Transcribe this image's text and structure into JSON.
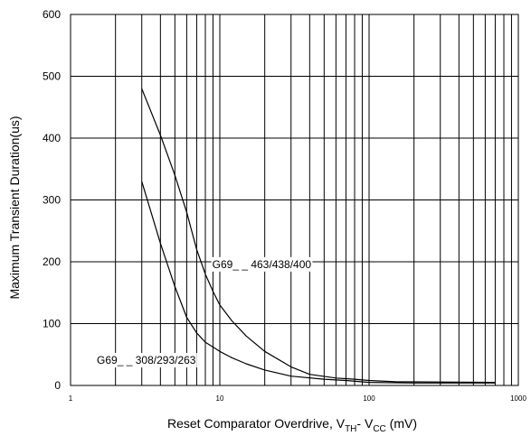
{
  "chart_data": {
    "type": "line",
    "title": "",
    "xlabel": {
      "prefix": "Reset Comparator Overdrive, V",
      "sub1": "TH",
      "middle": "- V",
      "sub2": "CC",
      "suffix": " (mV)"
    },
    "ylabel": "Maximum Transient Duration(us)",
    "x_scale": "log",
    "xlim": [
      1,
      1000
    ],
    "ylim": [
      0,
      600
    ],
    "x_tick_labels": [
      "1",
      "10",
      "100",
      "1000"
    ],
    "y_tick_labels": [
      "0",
      "100",
      "200",
      "300",
      "400",
      "500",
      "600"
    ],
    "grid": true,
    "series": [
      {
        "name": "G69_ _ 463/438/400",
        "x": [
          3,
          4,
          5,
          6,
          7,
          8,
          9,
          10,
          12,
          15,
          20,
          30,
          40,
          60,
          80,
          100,
          150,
          700
        ],
        "y": [
          480,
          405,
          340,
          280,
          220,
          180,
          152,
          130,
          105,
          80,
          55,
          30,
          18,
          12,
          10,
          8,
          6,
          5
        ]
      },
      {
        "name": "G69_ _ 308/293/263",
        "x": [
          3,
          4,
          5,
          6,
          7,
          8,
          10,
          12,
          15,
          20,
          30,
          50,
          70,
          100,
          200,
          700
        ],
        "y": [
          330,
          230,
          160,
          110,
          85,
          70,
          55,
          45,
          35,
          25,
          15,
          10,
          8,
          5,
          4,
          4
        ]
      }
    ],
    "annotations": [
      {
        "text": "G69_ _ 463/438/400",
        "x": 8.9,
        "y": 190
      },
      {
        "text": "G69_ _ 308/293/263",
        "x": 1.5,
        "y": 35
      }
    ]
  }
}
